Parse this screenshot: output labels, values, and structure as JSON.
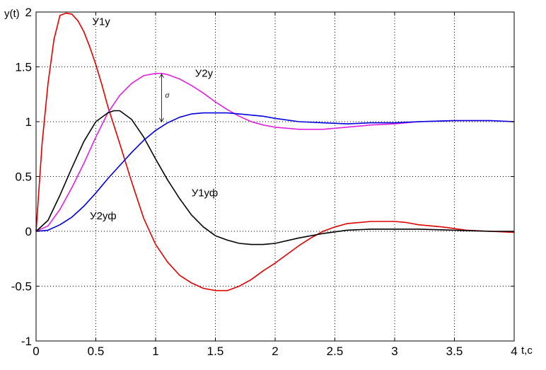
{
  "chart_data": {
    "type": "line",
    "ylabel": "y(t)",
    "xlabel": "t,c",
    "xlim": [
      0,
      4
    ],
    "ylim": [
      -1,
      2
    ],
    "xticks": [
      0,
      0.5,
      1,
      1.5,
      2,
      2.5,
      3,
      3.5,
      4
    ],
    "xtick_labels": [
      "0",
      "0.5",
      "1",
      "1.5",
      "2",
      "2.5",
      "3",
      "3.5",
      "4"
    ],
    "yticks": [
      -1,
      -0.5,
      0,
      0.5,
      1,
      1.5,
      2
    ],
    "ytick_labels": [
      "-1",
      "-0.5",
      "0",
      "0.5",
      "1",
      "1.5",
      "2"
    ],
    "grid": true,
    "series": [
      {
        "name": "У1у",
        "color": "#e00000",
        "x": [
          0,
          0.05,
          0.1,
          0.15,
          0.2,
          0.25,
          0.3,
          0.35,
          0.4,
          0.45,
          0.5,
          0.55,
          0.6,
          0.7,
          0.8,
          0.9,
          1.0,
          1.1,
          1.2,
          1.3,
          1.4,
          1.5,
          1.6,
          1.7,
          1.8,
          1.9,
          2.0,
          2.1,
          2.2,
          2.3,
          2.4,
          2.5,
          2.6,
          2.7,
          2.8,
          2.9,
          3.0,
          3.1,
          3.2,
          3.4,
          3.6,
          3.8,
          4.0
        ],
        "y": [
          0,
          0.8,
          1.35,
          1.75,
          1.97,
          1.99,
          1.98,
          1.92,
          1.82,
          1.68,
          1.52,
          1.34,
          1.14,
          0.8,
          0.45,
          0.12,
          -0.12,
          -0.28,
          -0.4,
          -0.47,
          -0.52,
          -0.54,
          -0.54,
          -0.5,
          -0.44,
          -0.36,
          -0.29,
          -0.21,
          -0.13,
          -0.06,
          0.0,
          0.04,
          0.07,
          0.08,
          0.09,
          0.09,
          0.09,
          0.08,
          0.06,
          0.04,
          0.01,
          0.0,
          -0.01
        ]
      },
      {
        "name": "У2у",
        "color": "#e020e0",
        "x": [
          0,
          0.1,
          0.2,
          0.3,
          0.4,
          0.5,
          0.6,
          0.7,
          0.8,
          0.9,
          1.0,
          1.05,
          1.1,
          1.2,
          1.3,
          1.4,
          1.5,
          1.6,
          1.7,
          1.8,
          1.9,
          2.0,
          2.2,
          2.4,
          2.6,
          2.8,
          3.0,
          3.2,
          3.5,
          3.8,
          4.0
        ],
        "y": [
          0,
          0.05,
          0.2,
          0.4,
          0.62,
          0.86,
          1.08,
          1.24,
          1.35,
          1.42,
          1.44,
          1.44,
          1.43,
          1.39,
          1.33,
          1.26,
          1.18,
          1.11,
          1.05,
          1.0,
          0.97,
          0.95,
          0.93,
          0.93,
          0.95,
          0.97,
          0.98,
          1.0,
          1.01,
          1.01,
          1.0
        ]
      },
      {
        "name": "У1уф",
        "color": "#000000",
        "x": [
          0,
          0.1,
          0.2,
          0.3,
          0.4,
          0.5,
          0.6,
          0.65,
          0.7,
          0.8,
          0.9,
          1.0,
          1.1,
          1.2,
          1.3,
          1.4,
          1.5,
          1.6,
          1.7,
          1.8,
          1.9,
          2.0,
          2.2,
          2.4,
          2.6,
          2.8,
          3.0,
          3.2,
          3.5,
          3.8,
          4.0
        ],
        "y": [
          0,
          0.1,
          0.33,
          0.58,
          0.82,
          1.0,
          1.08,
          1.1,
          1.1,
          1.02,
          0.86,
          0.66,
          0.47,
          0.3,
          0.15,
          0.04,
          -0.04,
          -0.08,
          -0.11,
          -0.12,
          -0.12,
          -0.11,
          -0.06,
          -0.02,
          0.01,
          0.02,
          0.02,
          0.02,
          0.01,
          0.0,
          0.0
        ]
      },
      {
        "name": "У2уф",
        "color": "#0000e0",
        "x": [
          0,
          0.1,
          0.2,
          0.3,
          0.4,
          0.5,
          0.6,
          0.7,
          0.8,
          0.9,
          1.0,
          1.1,
          1.2,
          1.3,
          1.4,
          1.5,
          1.6,
          1.7,
          1.8,
          1.9,
          2.0,
          2.2,
          2.4,
          2.6,
          2.8,
          3.0,
          3.2,
          3.5,
          3.8,
          4.0
        ],
        "y": [
          0,
          0.01,
          0.06,
          0.13,
          0.23,
          0.35,
          0.48,
          0.6,
          0.72,
          0.83,
          0.92,
          0.99,
          1.04,
          1.07,
          1.08,
          1.08,
          1.08,
          1.07,
          1.06,
          1.05,
          1.03,
          1.0,
          0.99,
          0.98,
          0.99,
          0.99,
          1.0,
          1.01,
          1.01,
          1.0
        ]
      }
    ],
    "annotations": [
      {
        "text": "У1у",
        "x": 0.47,
        "y": 1.88
      },
      {
        "text": "У2у",
        "x": 1.33,
        "y": 1.41
      },
      {
        "text": "У1уф",
        "x": 1.3,
        "y": 0.32
      },
      {
        "text": "У2уф",
        "x": 0.45,
        "y": 0.11
      },
      {
        "text": "σ",
        "x": 1.08,
        "y": 1.22
      }
    ],
    "overshoot_marker": {
      "x": 1.05,
      "y_from": 1.0,
      "y_to": 1.44
    }
  }
}
